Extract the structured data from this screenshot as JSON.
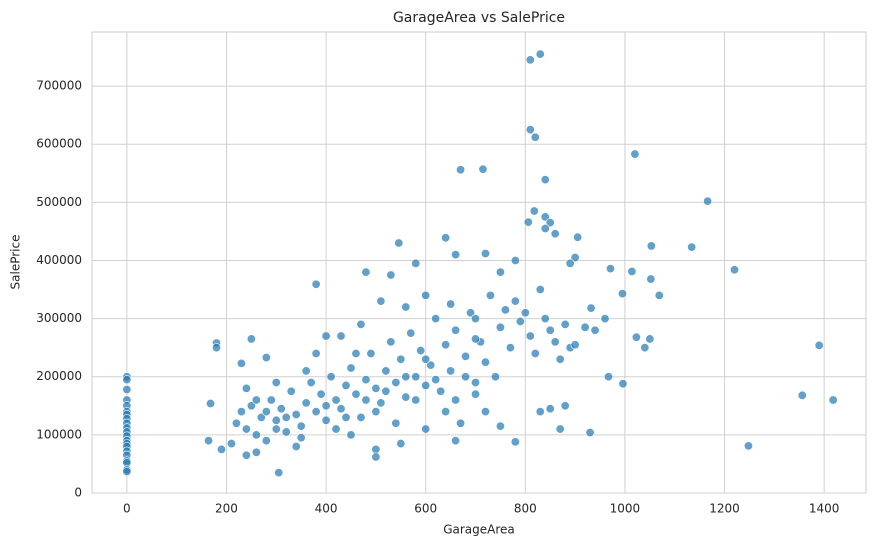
{
  "chart_data": {
    "type": "scatter",
    "title": "GarageArea vs SalePrice",
    "x_label": "GarageArea",
    "y_label": "SalePrice",
    "color": "#1f77b4",
    "grid": true,
    "xlim": [
      -70,
      1484
    ],
    "ylim": [
      0,
      793000
    ],
    "xticks": [
      0,
      200,
      400,
      600,
      800,
      1000,
      1200,
      1400
    ],
    "yticks": [
      0,
      100000,
      200000,
      300000,
      400000,
      500000,
      600000,
      700000
    ],
    "x": [
      0,
      0,
      0,
      0,
      0,
      0,
      0,
      0,
      0,
      0,
      0,
      0,
      0,
      0,
      0,
      0,
      0,
      0,
      0,
      0,
      0,
      810,
      830,
      810,
      820,
      1020,
      670,
      715,
      840,
      1166,
      818,
      840,
      850,
      806,
      840,
      860,
      640,
      905,
      1053,
      1134,
      546,
      720,
      1220,
      1390,
      1356,
      1418,
      1248,
      996,
      967,
      1069,
      1052,
      1014,
      971,
      380,
      180,
      180,
      250,
      230,
      280,
      168,
      164,
      190,
      240,
      305,
      500,
      500,
      780,
      830,
      870,
      930,
      1040,
      1050,
      1023,
      995,
      932,
      900,
      890,
      220,
      230,
      240,
      250,
      260,
      270,
      280,
      290,
      300,
      310,
      320,
      330,
      340,
      350,
      360,
      370,
      380,
      390,
      400,
      410,
      420,
      430,
      440,
      450,
      460,
      470,
      480,
      490,
      500,
      510,
      520,
      530,
      540,
      550,
      560,
      570,
      580,
      590,
      600,
      610,
      620,
      630,
      640,
      650,
      660,
      670,
      680,
      690,
      700,
      710,
      720,
      730,
      740,
      750,
      760,
      770,
      780,
      790,
      800,
      810,
      820,
      830,
      840,
      850,
      860,
      870,
      880,
      890,
      900,
      920,
      940,
      960,
      280,
      300,
      260,
      320,
      350,
      400,
      420,
      440,
      460,
      480,
      500,
      520,
      540,
      560,
      580,
      600,
      620,
      640,
      660,
      680,
      700,
      720,
      400,
      430,
      470,
      510,
      560,
      600,
      650,
      700,
      750,
      780,
      480,
      530,
      580,
      660,
      700,
      360,
      380,
      300,
      240,
      210,
      260,
      340,
      450,
      550,
      600,
      660,
      750,
      850,
      880
    ],
    "values": [
      200000,
      195000,
      178000,
      160000,
      150000,
      140000,
      135000,
      128000,
      120000,
      112000,
      105000,
      98000,
      90000,
      85000,
      80000,
      72000,
      65000,
      55000,
      52000,
      40000,
      37000,
      745000,
      755000,
      625000,
      612000,
      583000,
      556000,
      557000,
      539000,
      502000,
      485000,
      475000,
      465000,
      466000,
      455000,
      446000,
      439000,
      440000,
      425000,
      423000,
      430000,
      412000,
      384000,
      254000,
      168000,
      160000,
      81000,
      188000,
      200000,
      340000,
      368000,
      381000,
      386000,
      359000,
      258000,
      250000,
      265000,
      223000,
      233000,
      154000,
      90000,
      75000,
      65000,
      35000,
      75000,
      62000,
      88000,
      140000,
      110000,
      104000,
      250000,
      265000,
      268000,
      343000,
      318000,
      405000,
      395000,
      120000,
      140000,
      110000,
      150000,
      100000,
      130000,
      90000,
      160000,
      125000,
      145000,
      105000,
      175000,
      135000,
      115000,
      155000,
      190000,
      140000,
      170000,
      125000,
      200000,
      160000,
      145000,
      185000,
      215000,
      170000,
      130000,
      195000,
      240000,
      180000,
      155000,
      210000,
      260000,
      190000,
      230000,
      165000,
      275000,
      200000,
      245000,
      185000,
      220000,
      300000,
      175000,
      255000,
      210000,
      280000,
      120000,
      235000,
      310000,
      190000,
      260000,
      225000,
      340000,
      200000,
      285000,
      315000,
      250000,
      330000,
      295000,
      310000,
      270000,
      240000,
      350000,
      300000,
      280000,
      260000,
      230000,
      290000,
      250000,
      255000,
      285000,
      280000,
      300000,
      140000,
      110000,
      160000,
      130000,
      95000,
      150000,
      110000,
      130000,
      240000,
      160000,
      140000,
      175000,
      120000,
      200000,
      160000,
      230000,
      195000,
      140000,
      160000,
      200000,
      170000,
      140000,
      270000,
      270000,
      290000,
      330000,
      320000,
      340000,
      325000,
      300000,
      380000,
      400000,
      380000,
      375000,
      395000,
      410000,
      265000,
      210000,
      240000,
      190000,
      180000,
      85000,
      70000,
      80000,
      100000,
      85000,
      110000,
      90000,
      115000,
      145000,
      150000
    ]
  }
}
